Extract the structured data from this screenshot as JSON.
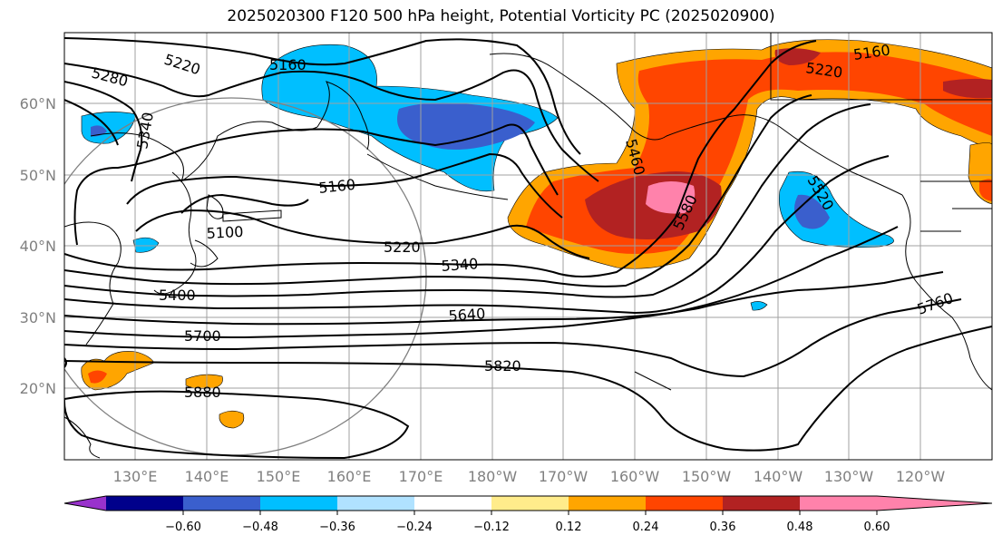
{
  "title": "2025020300 F120 500 hPa height, Potential Vorticity PC (2025020900)",
  "lat_labels": [
    "60°N",
    "50°N",
    "40°N",
    "30°N",
    "20°N"
  ],
  "lon_labels": [
    "130°E",
    "140°E",
    "150°E",
    "160°E",
    "170°E",
    "180°W",
    "170°W",
    "160°W",
    "150°W",
    "140°W",
    "130°W",
    "120°W"
  ],
  "contour_labels": [
    "5280",
    "5220",
    "5160",
    "5340",
    "5160",
    "5100",
    "5220",
    "5340",
    "5400",
    "5640",
    "5700",
    "5820",
    "5880",
    "5460",
    "5580",
    "5520",
    "5220",
    "5160",
    "5760"
  ],
  "colorbar": {
    "ticks": [
      "−0.60",
      "−0.48",
      "−0.36",
      "−0.24",
      "−0.12",
      "0.12",
      "0.24",
      "0.36",
      "0.48",
      "0.60"
    ],
    "colors": [
      "#9932cc",
      "#00008b",
      "#3a5fcd",
      "#00bfff",
      "#b0e2ff",
      "#ffffff",
      "#ffec8b",
      "#ffa500",
      "#ff4500",
      "#b22222",
      "#ff82ab"
    ]
  },
  "colors": {
    "grid": "#a0a0a0",
    "contour": "#000000",
    "coast": "#000000",
    "axis_label": "#808080"
  }
}
